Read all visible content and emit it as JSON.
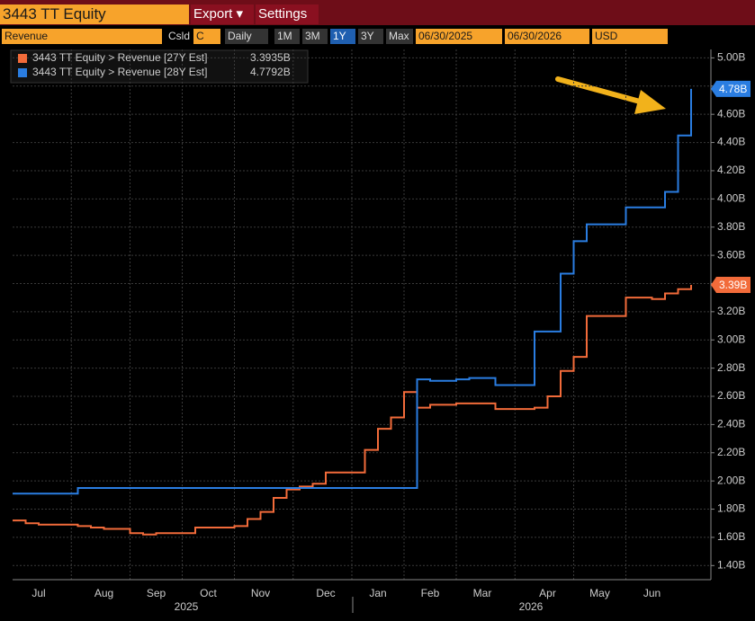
{
  "toolbar": {
    "ticker": "3443 TT Equity",
    "menu": [
      "Export ▾",
      "Settings"
    ],
    "field": "Revenue",
    "basis_label": "Csld",
    "basis": "C",
    "period": "Daily",
    "ranges": [
      "1M",
      "3M",
      "1Y",
      "3Y",
      "Max"
    ],
    "selected_range": "1Y",
    "start_date": "06/30/2025",
    "end_date": "06/30/2026",
    "currency": "USD"
  },
  "chart_data": {
    "type": "line",
    "step": true,
    "categories": [
      null,
      null,
      "Jul",
      null,
      null,
      null,
      null,
      "Aug",
      null,
      null,
      null,
      "Sep",
      null,
      null,
      null,
      "Oct",
      null,
      null,
      null,
      "Nov",
      null,
      null,
      null,
      null,
      "Dec",
      null,
      null,
      null,
      "Jan",
      null,
      null,
      null,
      "Feb",
      null,
      null,
      null,
      "Mar",
      null,
      null,
      null,
      null,
      "Apr",
      null,
      null,
      null,
      "May",
      null,
      null,
      null,
      "Jun",
      null,
      null,
      null
    ],
    "year_labels": [
      "2025",
      "2026"
    ],
    "series": [
      {
        "name": "3443 TT Equity > Revenue [27Y Est]",
        "legend_value": "3.3935B",
        "last_label": "3.39B",
        "color": "#f26b3a",
        "values": [
          1.72,
          1.7,
          1.69,
          1.69,
          1.69,
          1.68,
          1.67,
          1.66,
          1.66,
          1.63,
          1.62,
          1.63,
          1.63,
          1.63,
          1.67,
          1.67,
          1.67,
          1.68,
          1.73,
          1.78,
          1.88,
          1.94,
          1.96,
          1.98,
          2.06,
          2.06,
          2.06,
          2.22,
          2.37,
          2.45,
          2.63,
          2.52,
          2.54,
          2.54,
          2.55,
          2.55,
          2.55,
          2.51,
          2.51,
          2.51,
          2.52,
          2.6,
          2.78,
          2.88,
          3.17,
          3.17,
          3.17,
          3.3,
          3.3,
          3.29,
          3.33,
          3.36,
          3.39
        ]
      },
      {
        "name": "3443 TT Equity > Revenue [28Y Est]",
        "legend_value": "4.7792B",
        "last_label": "4.78B",
        "color": "#2a7de1",
        "values": [
          1.91,
          1.91,
          1.91,
          1.91,
          1.91,
          1.95,
          1.95,
          1.95,
          1.95,
          1.95,
          1.95,
          1.95,
          1.95,
          1.95,
          1.95,
          1.95,
          1.95,
          1.95,
          1.95,
          1.95,
          1.95,
          1.95,
          1.95,
          1.95,
          1.95,
          1.95,
          1.95,
          1.95,
          1.95,
          1.95,
          1.95,
          2.72,
          2.71,
          2.71,
          2.72,
          2.73,
          2.73,
          2.68,
          2.68,
          2.68,
          3.06,
          3.06,
          3.47,
          3.7,
          3.82,
          3.82,
          3.82,
          3.94,
          3.94,
          3.94,
          4.05,
          4.45,
          4.78
        ]
      }
    ],
    "ylim": [
      1.3,
      5.06
    ],
    "yticks": [
      {
        "value": 1.4,
        "label": "1.40B"
      },
      {
        "value": 1.6,
        "label": "1.60B"
      },
      {
        "value": 1.8,
        "label": "1.80B"
      },
      {
        "value": 2.0,
        "label": "2.00B"
      },
      {
        "value": 2.2,
        "label": "2.20B"
      },
      {
        "value": 2.4,
        "label": "2.40B"
      },
      {
        "value": 2.6,
        "label": "2.60B"
      },
      {
        "value": 2.8,
        "label": "2.80B"
      },
      {
        "value": 3.0,
        "label": "3.00B"
      },
      {
        "value": 3.2,
        "label": "3.20B"
      },
      {
        "value": 3.4,
        "label": "3.40B"
      },
      {
        "value": 3.6,
        "label": "3.60B"
      },
      {
        "value": 3.8,
        "label": "3.80B"
      },
      {
        "value": 4.0,
        "label": "4.00B"
      },
      {
        "value": 4.2,
        "label": "4.20B"
      },
      {
        "value": 4.4,
        "label": "4.40B"
      },
      {
        "value": 4.6,
        "label": "4.60B"
      },
      {
        "value": 4.8,
        "label": "4.80B"
      },
      {
        "value": 5.0,
        "label": "5.00B"
      }
    ],
    "grid": true
  }
}
